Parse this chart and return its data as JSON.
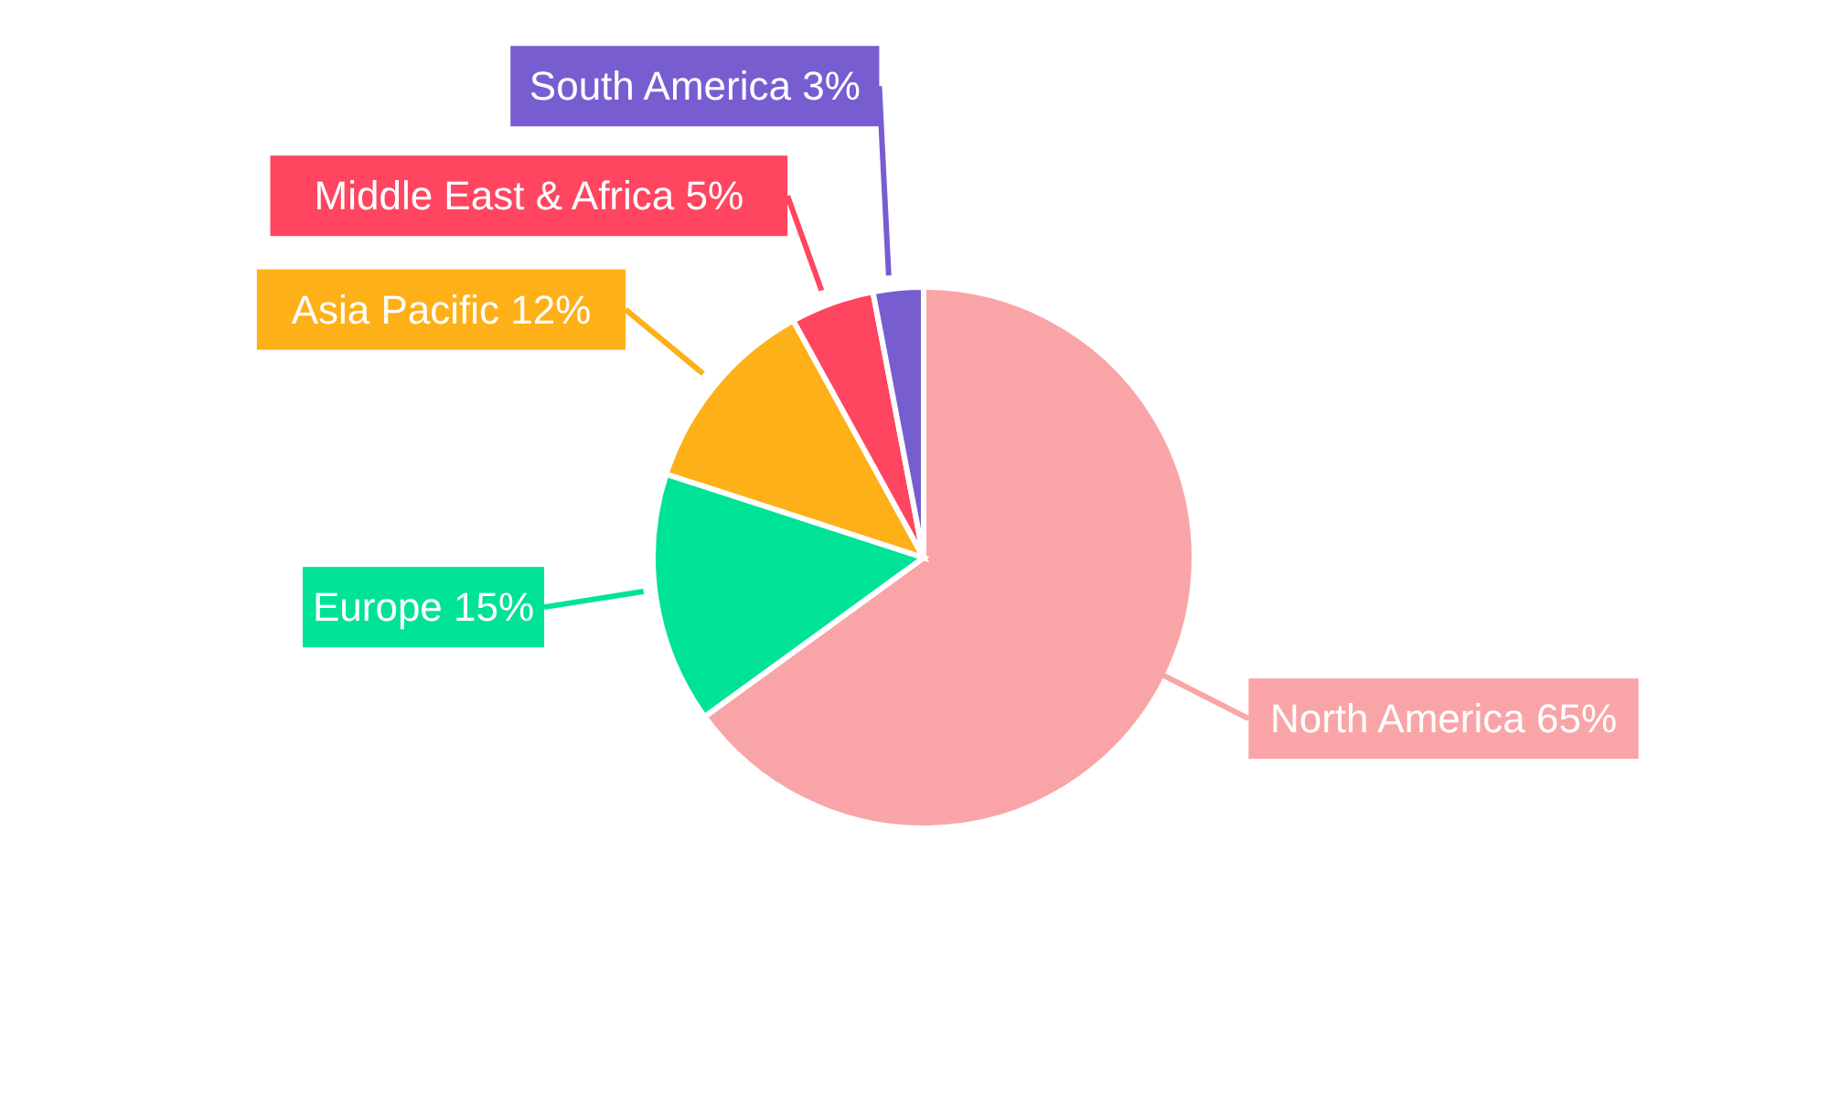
{
  "chart_data": {
    "type": "pie",
    "categories": [
      "North America",
      "Europe",
      "Asia Pacific",
      "Middle East & Africa",
      "South America"
    ],
    "values": [
      65,
      15,
      12,
      5,
      3
    ],
    "value_labels": [
      "65%",
      "15%",
      "12%",
      "5%",
      "3%"
    ],
    "colors": [
      "#f9a5a7",
      "#00e396",
      "#feb019",
      "#ff4560",
      "#775dd0"
    ],
    "legend": false
  }
}
